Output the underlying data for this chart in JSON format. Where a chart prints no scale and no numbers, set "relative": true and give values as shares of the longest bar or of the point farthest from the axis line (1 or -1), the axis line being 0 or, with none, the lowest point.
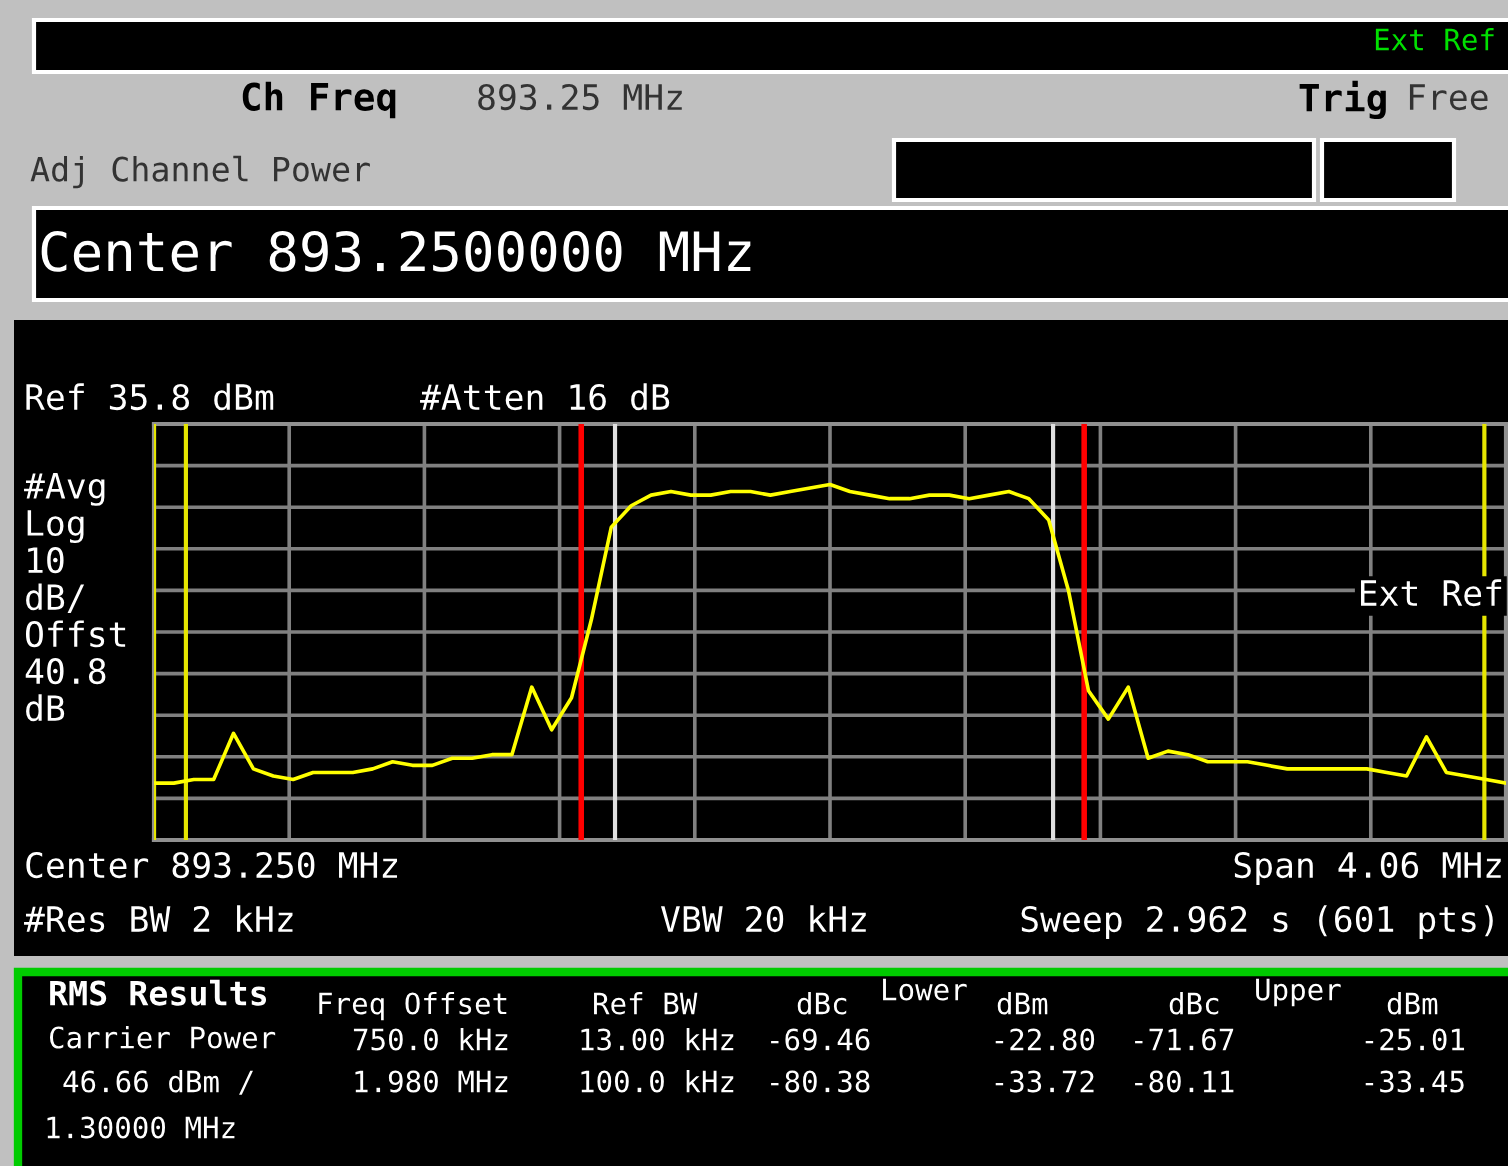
{
  "chart_data": {
    "type": "line",
    "categories": [
      null,
      null,
      null,
      null,
      null,
      null,
      null,
      null,
      null,
      null,
      null,
      null,
      null,
      null,
      null,
      null,
      null,
      null,
      null,
      null,
      null,
      null,
      null,
      null,
      null,
      null,
      null,
      null,
      null,
      null,
      null,
      null,
      null,
      null,
      null,
      null,
      null,
      null,
      null,
      null,
      null,
      null,
      null,
      null,
      null,
      null,
      null,
      null,
      null,
      null,
      null,
      null,
      null,
      null,
      null,
      null,
      null,
      null,
      null,
      null,
      null,
      null,
      null,
      null,
      null,
      null,
      null,
      null,
      null
    ],
    "values": [
      0.16,
      0.16,
      0.17,
      0.17,
      0.3,
      0.2,
      0.18,
      0.17,
      0.19,
      0.19,
      0.19,
      0.2,
      0.22,
      0.21,
      0.21,
      0.23,
      0.23,
      0.24,
      0.24,
      0.43,
      0.31,
      0.4,
      0.62,
      0.88,
      0.94,
      0.97,
      0.98,
      0.97,
      0.97,
      0.98,
      0.98,
      0.97,
      0.98,
      0.99,
      1.0,
      0.98,
      0.97,
      0.96,
      0.96,
      0.97,
      0.97,
      0.96,
      0.97,
      0.98,
      0.96,
      0.9,
      0.7,
      0.42,
      0.34,
      0.43,
      0.23,
      0.25,
      0.24,
      0.22,
      0.22,
      0.22,
      0.21,
      0.2,
      0.2,
      0.2,
      0.2,
      0.2,
      0.19,
      0.18,
      0.29,
      0.19,
      0.18,
      0.17,
      0.16
    ],
    "color": "#ffff00",
    "relative": true,
    "grid": true,
    "annotations": [
      "Ext Ref",
      "Ch Freq",
      "893.25 MHz",
      "Trig",
      "Free",
      "Adj Channel Power",
      "Center 893.2500000 MHz",
      "Ref 35.8 dBm",
      "#Atten 16 dB",
      "#Avg\nLog\n10\ndB/\nOffst\n40.8\ndB",
      "Ext Ref",
      "Center 893.250 MHz",
      "Span 4.06 MHz",
      "#Res BW 2 kHz",
      "VBW 20 kHz",
      "Sweep 2.962 s (601 pts)",
      "RMS Results",
      "Freq Offset",
      "Ref BW",
      "dBc",
      "Lower",
      "dBm",
      "dBc",
      "Upper",
      "dBm",
      "Carrier Power",
      "750.0 kHz",
      "13.00 kHz",
      "-69.46",
      "-22.80",
      "-71.67",
      "-25.01",
      "46.66 dBm /",
      "1.980 MHz",
      "100.0 kHz",
      "-80.38",
      "-33.72",
      "-80.11",
      "-33.45",
      "1.30000 MHz"
    ]
  }
}
